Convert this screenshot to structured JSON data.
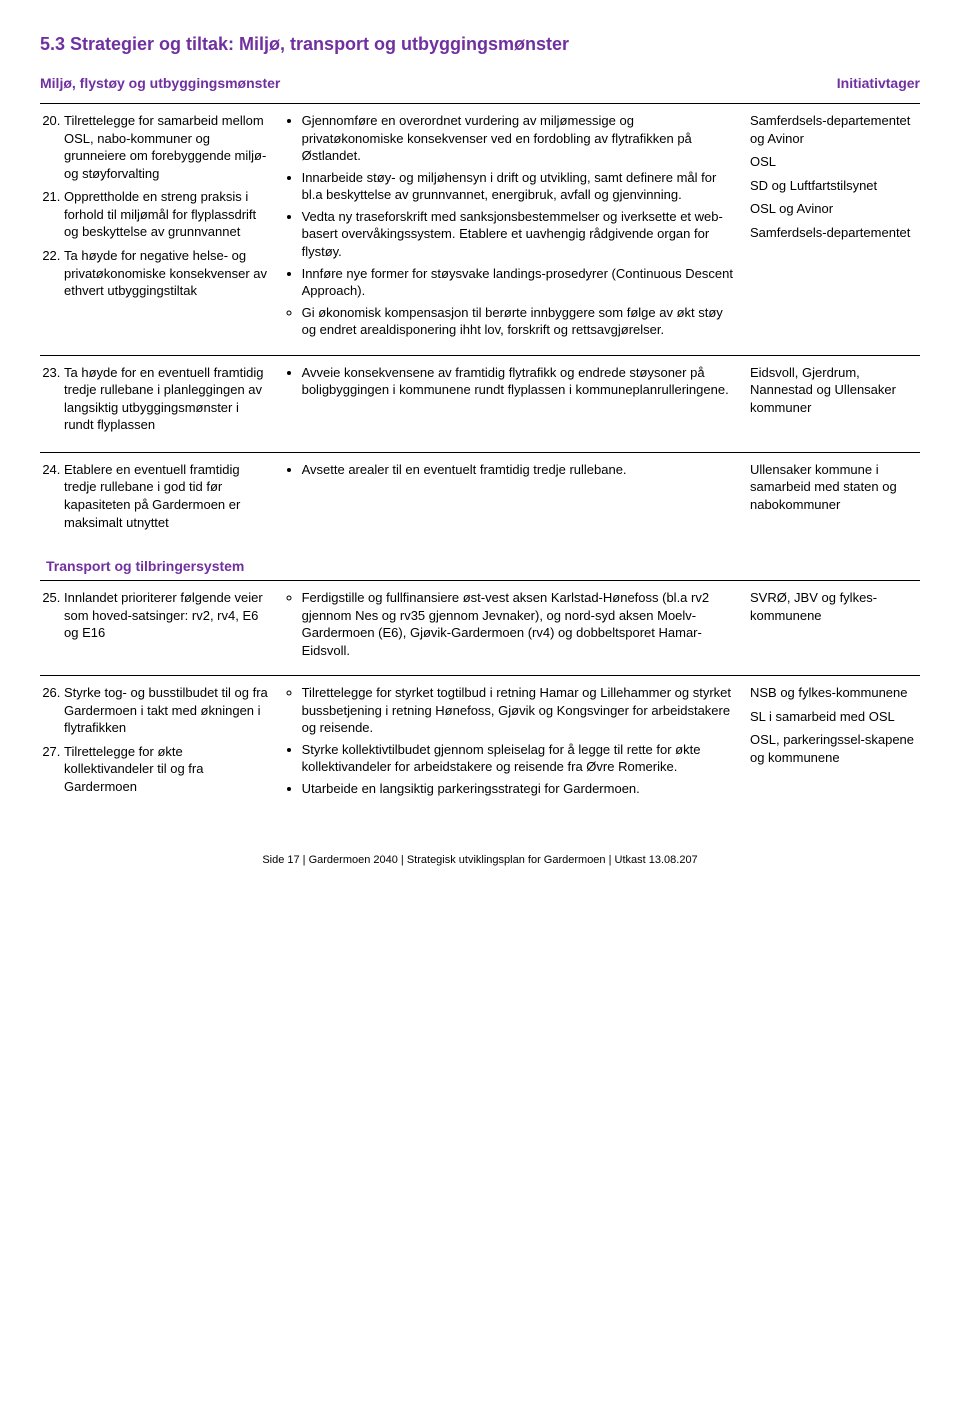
{
  "colors": {
    "heading": "#7030a0",
    "body_text": "#000000",
    "background": "#ffffff",
    "rule": "#000000"
  },
  "typography": {
    "heading_fontsize_pt": 18,
    "subheading_fontsize_pt": 14,
    "body_fontsize_pt": 13,
    "footer_fontsize_pt": 11,
    "font_family": "Arial"
  },
  "heading": "5.3 Strategier og tiltak: Miljø, transport og utbyggingsmønster",
  "sub_left": "Miljø, flystøy og utbyggingsmønster",
  "sub_right": "Initiativtager",
  "rows": [
    {
      "strategies_start": 20,
      "strategies": [
        "Tilrettelegge for samarbeid mellom OSL, nabo-kommuner og grunneiere om forebyggende miljø- og støyforvalting",
        "Opprettholde en streng praksis i forhold til miljømål for flyplassdrift og beskyttelse av grunnvannet",
        "Ta høyde for negative helse- og privatøkonomiske konsekvenser av ethvert utbyggingstiltak"
      ],
      "actions": [
        "Gjennomføre en overordnet vurdering av miljømessige og privatøkonomiske konsekvenser ved en fordobling av flytrafikken på Østlandet.",
        "Innarbeide støy- og miljøhensyn i drift og utvikling, samt definere mål for bl.a beskyttelse av grunnvannet, energibruk, avfall og gjenvinning.",
        "Vedta ny traseforskrift med sanksjonsbestemmelser og iverksette et web-basert overvåkingssystem. Etablere et uavhengig rådgivende organ for flystøy.",
        "Innføre nye former for støysvake landings-prosedyrer (Continuous Descent Approach).",
        "Gi økonomisk kompensasjon til berørte innbyggere som følge av økt støy og endret arealdisponering ihht lov, forskrift og rettsavgjørelser."
      ],
      "actions_last_circle": true,
      "initiators": [
        "Samferdsels-departementet og Avinor",
        "OSL",
        "SD og Luftfartstilsynet",
        "OSL og Avinor",
        "Samferdsels-departementet"
      ]
    },
    {
      "strategies_start": 23,
      "strategies": [
        "Ta høyde for en eventuell framtidig tredje rullebane i planleggingen av langsiktig utbyggingsmønster i rundt flyplassen"
      ],
      "actions": [
        "Avveie konsekvensene av framtidig flytrafikk og endrede støysoner på boligbyggingen i kommunene rundt flyplassen i kommuneplanrulleringene."
      ],
      "initiators": [
        "Eidsvoll, Gjerdrum, Nannestad og Ullensaker kommuner"
      ]
    },
    {
      "strategies_start": 24,
      "strategies": [
        "Etablere en eventuell framtidig tredje rullebane i god tid før kapasiteten på Gardermoen er maksimalt utnyttet"
      ],
      "actions": [
        "Avsette arealer til en eventuelt framtidig tredje rullebane."
      ],
      "initiators": [
        "Ullensaker kommune i samarbeid med staten og nabokommuner"
      ]
    }
  ],
  "section2_label": "Transport og tilbringersystem",
  "rows2": [
    {
      "strategies_start": 25,
      "strategies": [
        "Innlandet prioriterer følgende veier som hoved-satsinger: rv2, rv4, E6 og E16"
      ],
      "actions": [
        "Ferdigstille og fullfinansiere øst-vest aksen Karlstad-Hønefoss (bl.a rv2 gjennom Nes og rv35 gjennom Jevnaker), og nord-syd aksen Moelv-Gardermoen (E6), Gjøvik-Gardermoen (rv4) og dobbeltsporet Hamar-Eidsvoll."
      ],
      "actions_circle": true,
      "initiators": [
        "SVRØ, JBV og fylkes-kommunene"
      ]
    },
    {
      "strategies_start": 26,
      "strategies": [
        "Styrke tog- og busstilbudet til og fra Gardermoen i takt med økningen i flytrafikken",
        "Tilrettelegge for økte kollektivandeler til og fra Gardermoen"
      ],
      "actions": [
        "Tilrettelegge for styrket togtilbud i retning Hamar og Lillehammer og styrket bussbetjening i retning Hønefoss, Gjøvik og Kongsvinger for arbeidstakere og reisende.",
        "Styrke kollektivtilbudet gjennom spleiselag for å legge til rette for økte kollektivandeler for arbeidstakere og reisende fra Øvre Romerike.",
        "Utarbeide en langsiktig parkeringsstrategi for Gardermoen."
      ],
      "actions_first_circle": true,
      "initiators": [
        "NSB og fylkes-kommunene",
        "SL i samarbeid med OSL",
        "OSL, parkeringssel-skapene og kommunene"
      ]
    }
  ],
  "footer": "Side 17 | Gardermoen 2040 | Strategisk utviklingsplan for Gardermoen | Utkast 13.08.207"
}
